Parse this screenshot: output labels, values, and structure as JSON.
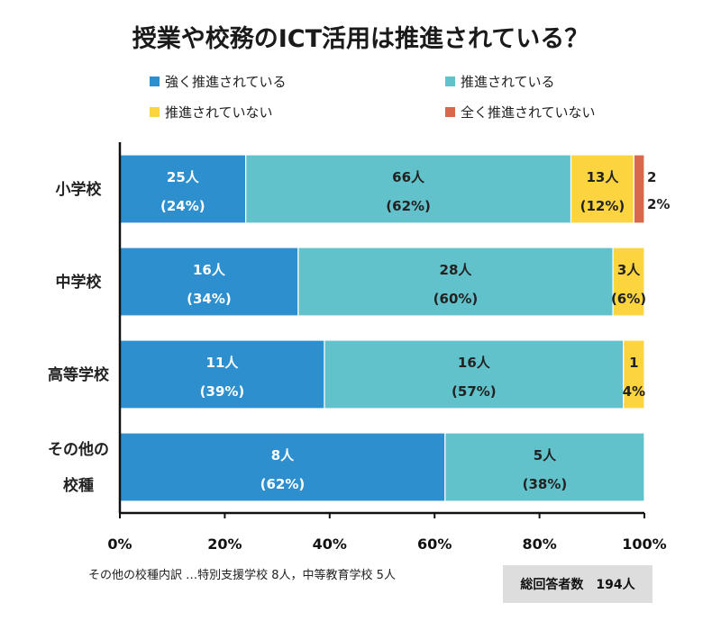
{
  "chart_data": {
    "type": "bar",
    "orientation": "horizontal",
    "stacked": true,
    "title": "授業や校務のICT活用は推進されている？",
    "categories": [
      {
        "label": "小学校",
        "lines": [
          "小学校"
        ]
      },
      {
        "label": "中学校",
        "lines": [
          "中学校"
        ]
      },
      {
        "label": "高等学校",
        "lines": [
          "高等学校"
        ]
      },
      {
        "label": "その他の校種",
        "lines": [
          "その他の",
          "校種"
        ]
      }
    ],
    "series": [
      {
        "name": "強く推進されている",
        "color": "#2e8fcf",
        "values": [
          24,
          34,
          39,
          62
        ],
        "count_labels": [
          "25人",
          "16人",
          "11人",
          "8人"
        ],
        "pct_labels": [
          "(24%)",
          "(34%)",
          "(39%)",
          "(62%)"
        ]
      },
      {
        "name": "推進されている",
        "color": "#62c2cb",
        "values": [
          62,
          60,
          57,
          38
        ],
        "count_labels": [
          "66人",
          "28人",
          "16人",
          "5人"
        ],
        "pct_labels": [
          "(62%)",
          "(60%)",
          "(57%)",
          "(38%)"
        ]
      },
      {
        "name": "推進されていない",
        "color": "#fcd440",
        "values": [
          12,
          6,
          4,
          0
        ],
        "count_labels": [
          "13人",
          "3人",
          "1",
          ""
        ],
        "pct_labels": [
          "(12%)",
          "(6%)",
          "4%",
          ""
        ]
      },
      {
        "name": "全く推進されていない",
        "color": "#d8684c",
        "values": [
          2,
          0,
          0,
          0
        ],
        "count_labels": [
          "2",
          "",
          "",
          ""
        ],
        "pct_labels": [
          "2%",
          "",
          "",
          ""
        ]
      }
    ],
    "xlim": [
      0,
      100
    ],
    "x_ticks": [
      "0%",
      "20%",
      "40%",
      "60%",
      "80%",
      "100%"
    ],
    "legend_position": "top",
    "note": "その他の校種内訳 …特別支援学校 8人，中等教育学校 5人",
    "total": "総回答者数　194人"
  }
}
